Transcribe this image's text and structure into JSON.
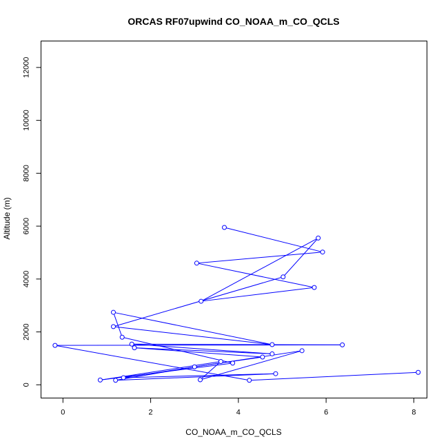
{
  "chart_data": {
    "type": "line",
    "title": "ORCAS RF07upwind CO_NOAA_m_CO_QCLS",
    "xlabel": "CO_NOAA_m_CO_QCLS",
    "ylabel": "Altitude (m)",
    "xlim": [
      -0.5,
      8.3
    ],
    "ylim": [
      -500,
      13000
    ],
    "xticks": [
      0,
      2,
      4,
      6,
      8
    ],
    "yticks": [
      0,
      2000,
      4000,
      6000,
      8000,
      10000,
      12000
    ],
    "grid": false,
    "legend": "none",
    "markers": "open-circle",
    "color": "#0000ff",
    "points": [
      {
        "x": 3.68,
        "y": 5950
      },
      {
        "x": 5.92,
        "y": 5020
      },
      {
        "x": 3.05,
        "y": 4600
      },
      {
        "x": 5.73,
        "y": 3680
      },
      {
        "x": 3.15,
        "y": 3160
      },
      {
        "x": 5.82,
        "y": 5550
      },
      {
        "x": 5.02,
        "y": 4080
      },
      {
        "x": 1.15,
        "y": 2200
      },
      {
        "x": 4.77,
        "y": 1520
      },
      {
        "x": 1.15,
        "y": 2740
      },
      {
        "x": 1.35,
        "y": 1800
      },
      {
        "x": 3.87,
        "y": 820
      },
      {
        "x": 0.85,
        "y": 180
      },
      {
        "x": 3.6,
        "y": 880
      },
      {
        "x": 3.13,
        "y": 190
      },
      {
        "x": 5.45,
        "y": 1290
      },
      {
        "x": 1.38,
        "y": 270
      },
      {
        "x": 4.85,
        "y": 420
      },
      {
        "x": 1.2,
        "y": 170
      },
      {
        "x": 3.0,
        "y": 680
      },
      {
        "x": 4.55,
        "y": 1050
      },
      {
        "x": 1.63,
        "y": 1400
      },
      {
        "x": 4.77,
        "y": 1170
      },
      {
        "x": 1.57,
        "y": 1540
      },
      {
        "x": 6.37,
        "y": 1510
      },
      {
        "x": -0.18,
        "y": 1490
      },
      {
        "x": 4.25,
        "y": 170
      },
      {
        "x": 8.1,
        "y": 470
      }
    ]
  }
}
